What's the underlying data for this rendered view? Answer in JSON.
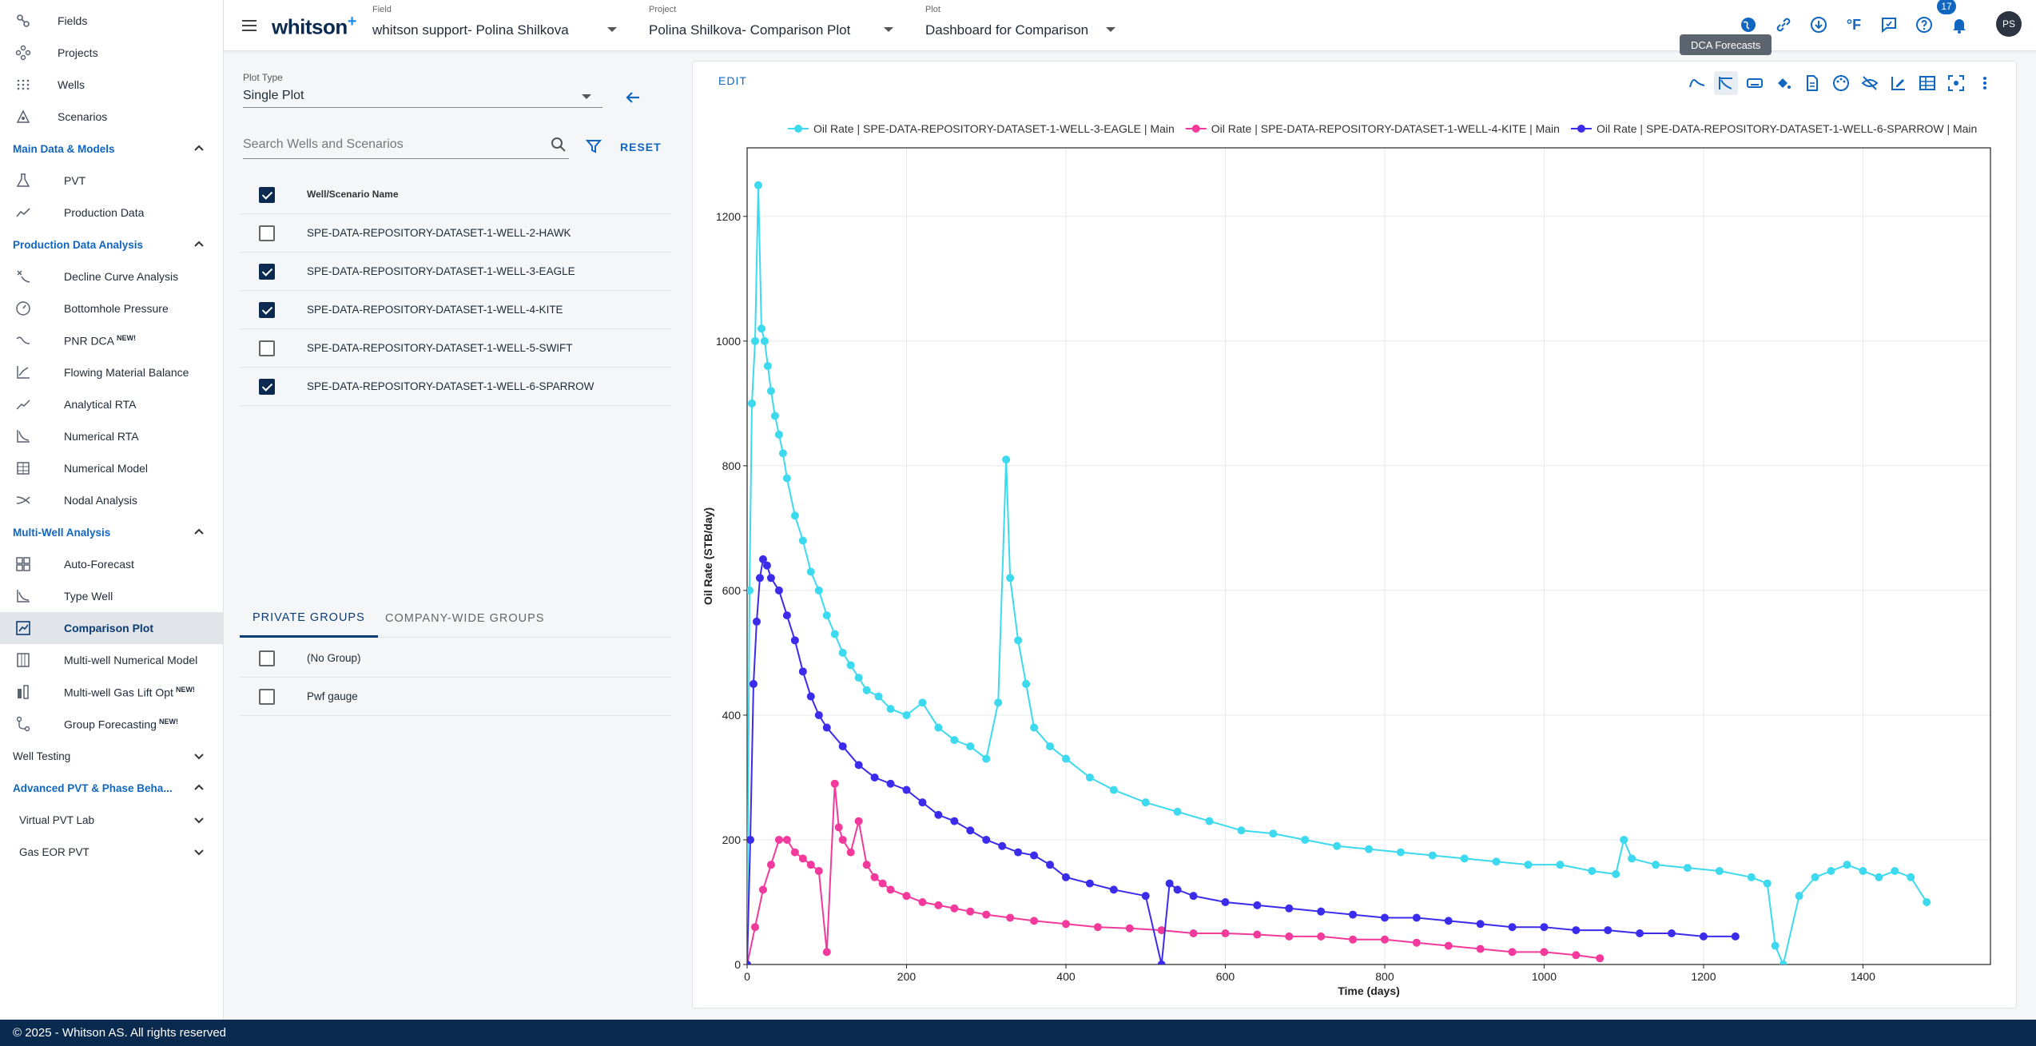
{
  "sidebar": {
    "top_items": [
      {
        "label": "Fields",
        "icon": "fields-icon"
      },
      {
        "label": "Projects",
        "icon": "projects-icon"
      },
      {
        "label": "Wells",
        "icon": "wells-icon"
      },
      {
        "label": "Scenarios",
        "icon": "scenarios-icon"
      }
    ],
    "sections": {
      "main_data": {
        "label": "Main Data & Models",
        "items": [
          "PVT",
          "Production Data"
        ]
      },
      "pda": {
        "label": "Production Data Analysis",
        "items": [
          "Decline Curve Analysis",
          "Bottomhole Pressure",
          "PNR DCA",
          "Flowing Material Balance",
          "Analytical RTA",
          "Numerical RTA",
          "Numerical Model",
          "Nodal Analysis"
        ]
      },
      "mwa": {
        "label": "Multi-Well Analysis",
        "items": [
          "Auto-Forecast",
          "Type Well",
          "Comparison Plot",
          "Multi-well Numerical Model",
          "Multi-well Gas Lift Opt",
          "Group Forecasting"
        ]
      },
      "well_testing": {
        "label": "Well Testing"
      },
      "adv_pvt": {
        "label": "Advanced PVT & Phase Beha...",
        "items": [
          "Virtual PVT Lab",
          "Gas EOR PVT"
        ]
      }
    },
    "new_tag": "NEW!"
  },
  "topbar": {
    "logo": "whitson",
    "logo_plus": "+",
    "field_caption": "Field",
    "field_value": "whitson support- Polina Shilkova",
    "project_caption": "Project",
    "project_value": "Polina Shilkova- Comparison Plot",
    "plot_caption": "Plot",
    "plot_value": "Dashboard for Comparison",
    "temp_unit": "°F",
    "notifications": "17",
    "avatar": "PS",
    "tooltip": "DCA Forecasts"
  },
  "left": {
    "plot_type_caption": "Plot Type",
    "plot_type_value": "Single Plot",
    "search_placeholder": "Search Wells and Scenarios",
    "reset": "RESET",
    "column_header": "Well/Scenario Name",
    "wells": [
      {
        "name": "SPE-DATA-REPOSITORY-DATASET-1-WELL-2-HAWK",
        "checked": false
      },
      {
        "name": "SPE-DATA-REPOSITORY-DATASET-1-WELL-3-EAGLE",
        "checked": true
      },
      {
        "name": "SPE-DATA-REPOSITORY-DATASET-1-WELL-4-KITE",
        "checked": true
      },
      {
        "name": "SPE-DATA-REPOSITORY-DATASET-1-WELL-5-SWIFT",
        "checked": false
      },
      {
        "name": "SPE-DATA-REPOSITORY-DATASET-1-WELL-6-SPARROW",
        "checked": true
      }
    ],
    "tab_private": "PRIVATE GROUPS",
    "tab_company": "COMPANY-WIDE GROUPS",
    "groups": [
      "(No Group)",
      "Pwf gauge"
    ]
  },
  "chart_panel": {
    "edit": "EDIT"
  },
  "chart_data": {
    "type": "line",
    "xlabel": "Time (days)",
    "ylabel": "Oil Rate (STB/day)",
    "xlim": [
      0,
      1560
    ],
    "ylim": [
      0,
      1310
    ],
    "xticks": [
      0,
      200,
      400,
      600,
      800,
      1000,
      1200,
      1400
    ],
    "yticks": [
      0,
      200,
      400,
      600,
      800,
      1000,
      1200
    ],
    "grid": true,
    "legend_position": "top",
    "series": [
      {
        "name": "Oil Rate | SPE-DATA-REPOSITORY-DATASET-1-WELL-3-EAGLE | Main",
        "color": "#3dd9ee",
        "x": [
          0,
          3,
          6,
          10,
          14,
          18,
          22,
          26,
          30,
          35,
          40,
          45,
          50,
          60,
          70,
          80,
          90,
          100,
          110,
          120,
          130,
          140,
          150,
          165,
          180,
          200,
          220,
          240,
          260,
          280,
          300,
          315,
          325,
          330,
          340,
          350,
          360,
          380,
          400,
          430,
          460,
          500,
          540,
          580,
          620,
          660,
          700,
          740,
          780,
          820,
          860,
          900,
          940,
          980,
          1020,
          1060,
          1090,
          1100,
          1110,
          1140,
          1180,
          1220,
          1260,
          1280,
          1290,
          1300,
          1320,
          1340,
          1360,
          1380,
          1400,
          1420,
          1440,
          1460,
          1480
        ],
        "y": [
          0,
          600,
          900,
          1000,
          1250,
          1020,
          1000,
          960,
          920,
          880,
          850,
          820,
          780,
          720,
          680,
          630,
          600,
          560,
          530,
          500,
          480,
          460,
          440,
          430,
          410,
          400,
          420,
          380,
          360,
          350,
          330,
          420,
          810,
          620,
          520,
          450,
          380,
          350,
          330,
          300,
          280,
          260,
          245,
          230,
          215,
          210,
          200,
          190,
          185,
          180,
          175,
          170,
          165,
          160,
          160,
          150,
          145,
          200,
          170,
          160,
          155,
          150,
          140,
          130,
          30,
          0,
          110,
          140,
          150,
          160,
          150,
          140,
          150,
          140,
          100
        ]
      },
      {
        "name": "Oil Rate | SPE-DATA-REPOSITORY-DATASET-1-WELL-4-KITE | Main",
        "color": "#f13a9b",
        "x": [
          0,
          10,
          20,
          30,
          40,
          50,
          60,
          70,
          80,
          90,
          100,
          110,
          115,
          120,
          130,
          140,
          150,
          160,
          170,
          180,
          200,
          220,
          240,
          260,
          280,
          300,
          330,
          360,
          400,
          440,
          480,
          520,
          560,
          600,
          640,
          680,
          720,
          760,
          800,
          840,
          880,
          920,
          960,
          1000,
          1040,
          1070
        ],
        "y": [
          0,
          60,
          120,
          160,
          200,
          200,
          180,
          170,
          160,
          150,
          20,
          290,
          220,
          200,
          180,
          230,
          160,
          140,
          130,
          120,
          110,
          100,
          95,
          90,
          85,
          80,
          75,
          70,
          65,
          60,
          58,
          55,
          50,
          50,
          48,
          45,
          45,
          40,
          40,
          35,
          30,
          25,
          20,
          20,
          15,
          10
        ]
      },
      {
        "name": "Oil Rate | SPE-DATA-REPOSITORY-DATASET-1-WELL-6-SPARROW | Main",
        "color": "#3b2bea",
        "x": [
          0,
          4,
          8,
          12,
          16,
          20,
          25,
          30,
          40,
          50,
          60,
          70,
          80,
          90,
          100,
          120,
          140,
          160,
          180,
          200,
          220,
          240,
          260,
          280,
          300,
          320,
          340,
          360,
          380,
          400,
          430,
          460,
          500,
          520,
          530,
          540,
          560,
          600,
          640,
          680,
          720,
          760,
          800,
          840,
          880,
          920,
          960,
          1000,
          1040,
          1080,
          1120,
          1160,
          1200,
          1240
        ],
        "y": [
          0,
          200,
          450,
          550,
          620,
          650,
          640,
          620,
          600,
          560,
          520,
          470,
          430,
          400,
          380,
          350,
          320,
          300,
          290,
          280,
          260,
          240,
          230,
          215,
          200,
          190,
          180,
          175,
          160,
          140,
          130,
          120,
          110,
          0,
          130,
          120,
          110,
          100,
          95,
          90,
          85,
          80,
          75,
          75,
          70,
          65,
          60,
          60,
          55,
          55,
          50,
          50,
          45,
          45
        ]
      }
    ]
  }
}
